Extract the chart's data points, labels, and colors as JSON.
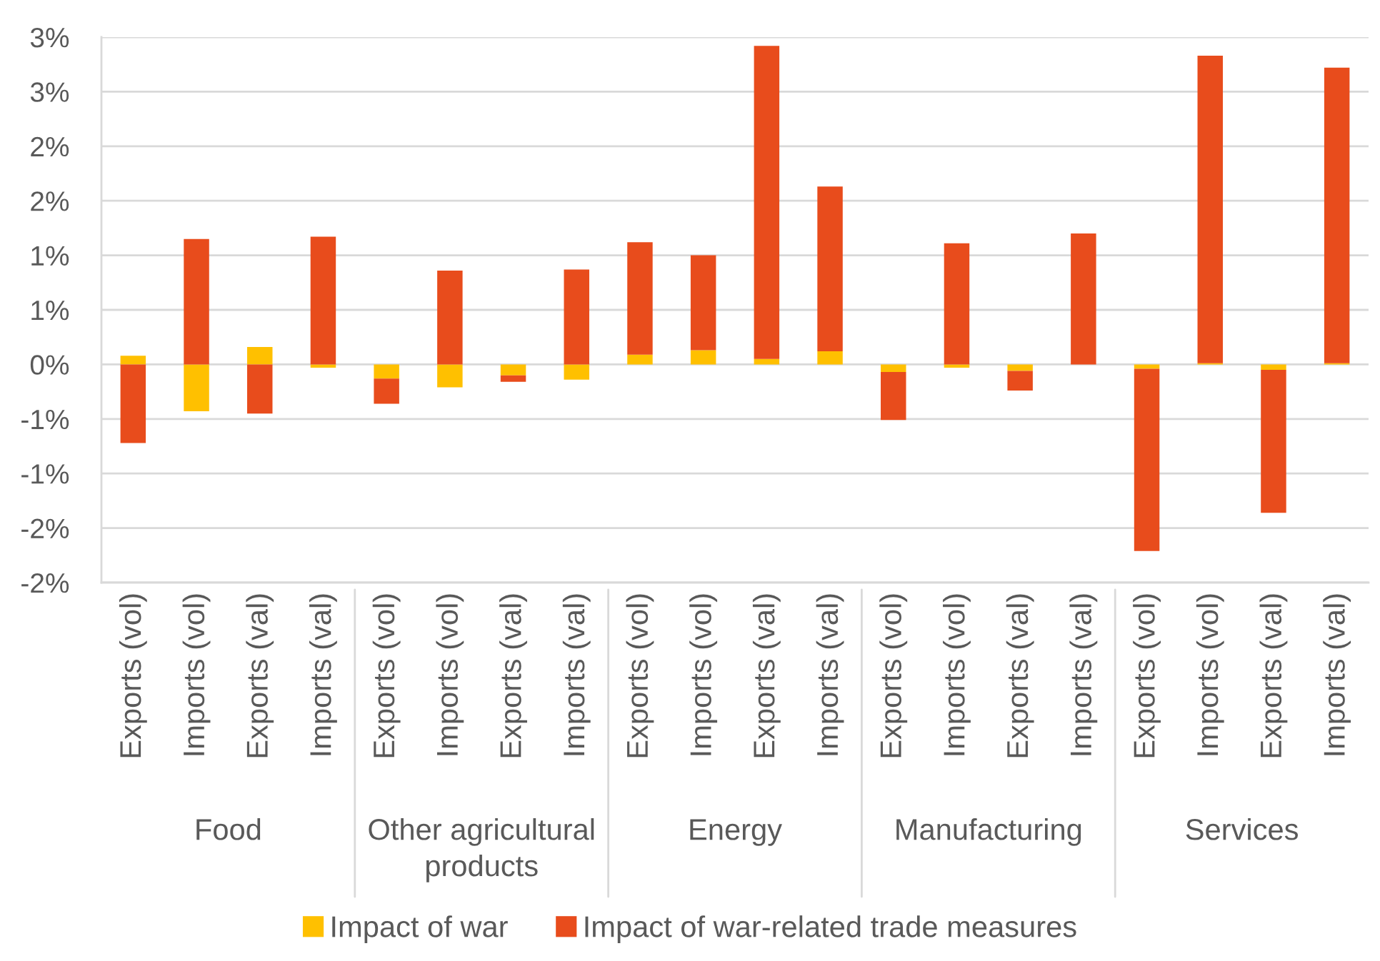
{
  "chart_data": {
    "type": "bar",
    "stacked": true,
    "categories": [
      "Exports (vol)",
      "Imports (vol)",
      "Exports (val)",
      "Imports (val)",
      "Exports (vol)",
      "Imports (vol)",
      "Exports (val)",
      "Imports (val)",
      "Exports (vol)",
      "Imports (vol)",
      "Exports (val)",
      "Imports (val)",
      "Exports (vol)",
      "Imports (vol)",
      "Exports (val)",
      "Imports (val)",
      "Exports (vol)",
      "Imports (vol)",
      "Exports (val)",
      "Imports (val)"
    ],
    "series": [
      {
        "name": "Impact of war",
        "color": "#ffc000",
        "values": [
          0.08,
          -0.43,
          0.16,
          -0.03,
          -0.13,
          -0.21,
          -0.1,
          -0.14,
          0.09,
          0.13,
          0.05,
          0.12,
          -0.07,
          -0.03,
          -0.06,
          null,
          -0.04,
          0.01,
          -0.05,
          0.01
        ]
      },
      {
        "name": "Impact of war-related trade measures",
        "color": "#e84c1c",
        "values": [
          -0.72,
          1.15,
          -0.45,
          1.17,
          -0.23,
          0.86,
          -0.06,
          0.87,
          1.03,
          0.87,
          2.87,
          1.51,
          -0.44,
          1.11,
          -0.18,
          1.2,
          -1.67,
          2.82,
          -1.31,
          2.71
        ]
      }
    ],
    "ylim": [
      -2,
      3
    ],
    "yticks": [
      {
        "value": -2,
        "label": "-2%"
      },
      {
        "value": -1.5,
        "label": "-2%"
      },
      {
        "value": -1,
        "label": "-1%"
      },
      {
        "value": -0.5,
        "label": "-1%"
      },
      {
        "value": 0,
        "label": "0%"
      },
      {
        "value": 0.5,
        "label": "1%"
      },
      {
        "value": 1,
        "label": "1%"
      },
      {
        "value": 1.5,
        "label": "2%"
      },
      {
        "value": 2,
        "label": "2%"
      },
      {
        "value": 2.5,
        "label": "3%"
      },
      {
        "value": 3,
        "label": "3%"
      }
    ],
    "grid": "y",
    "legend": "bottom",
    "annotations": [
      "Food",
      "Other agricultural products",
      "Energy",
      "Manufacturing",
      "Services"
    ]
  }
}
